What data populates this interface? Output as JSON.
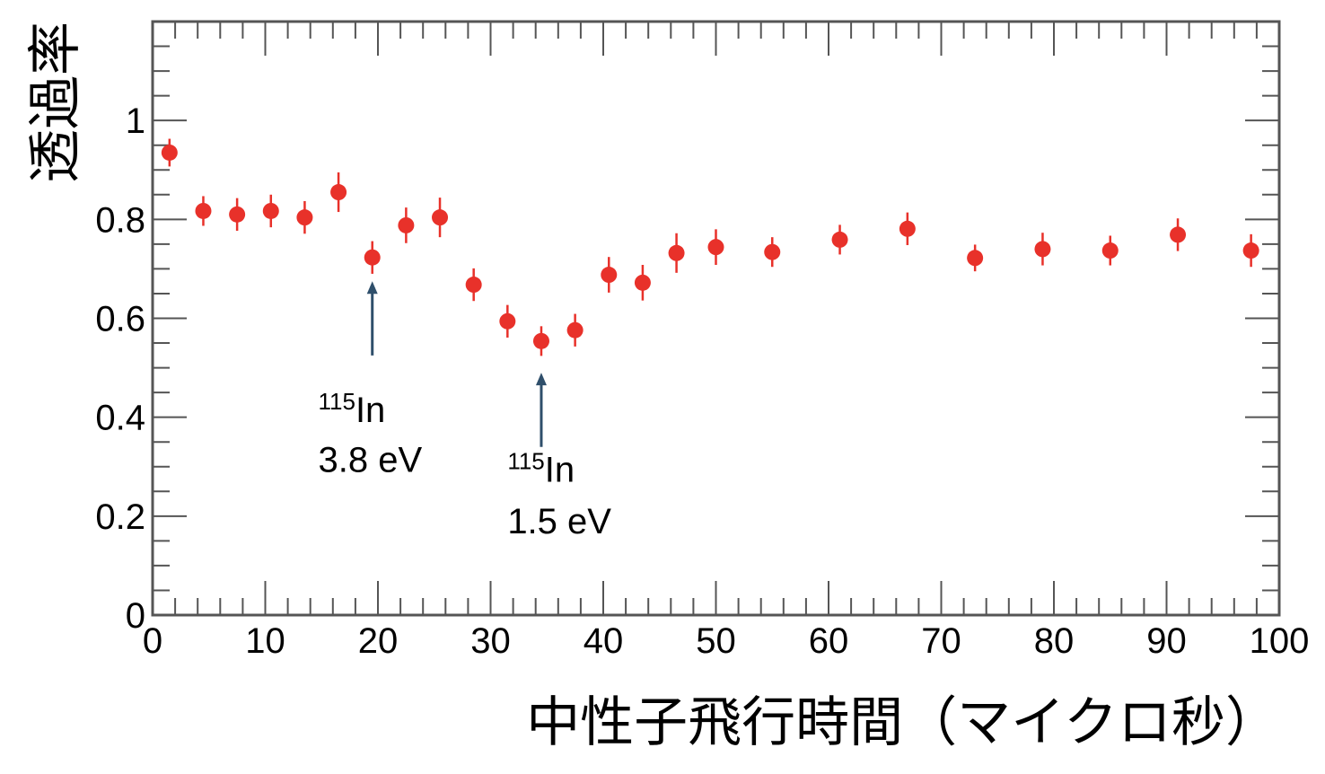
{
  "chart_data": {
    "type": "scatter",
    "title": "",
    "xlabel": "中性子飛行時間（マイクロ秒）",
    "ylabel": "透過率",
    "xlim": [
      0,
      100
    ],
    "ylim": [
      0,
      1.2
    ],
    "x_ticks": [
      "0",
      "10",
      "20",
      "30",
      "40",
      "50",
      "60",
      "70",
      "80",
      "90",
      "100"
    ],
    "y_ticks": [
      "0",
      "0.2",
      "0.4",
      "0.6",
      "0.8",
      "1"
    ],
    "grid": false,
    "colors": {
      "marker": "#e8312a",
      "errorbar": "#e8312a",
      "arrow": "#2f4f6b",
      "axis": "#555555"
    },
    "series": [
      {
        "points": [
          {
            "x": 1.5,
            "y": 0.935,
            "err": 0.028
          },
          {
            "x": 4.5,
            "y": 0.817,
            "err": 0.03
          },
          {
            "x": 7.5,
            "y": 0.81,
            "err": 0.033
          },
          {
            "x": 10.5,
            "y": 0.817,
            "err": 0.033
          },
          {
            "x": 13.5,
            "y": 0.804,
            "err": 0.033
          },
          {
            "x": 16.5,
            "y": 0.855,
            "err": 0.04
          },
          {
            "x": 19.5,
            "y": 0.723,
            "err": 0.033
          },
          {
            "x": 22.5,
            "y": 0.788,
            "err": 0.036
          },
          {
            "x": 25.5,
            "y": 0.804,
            "err": 0.04
          },
          {
            "x": 28.5,
            "y": 0.668,
            "err": 0.033
          },
          {
            "x": 31.5,
            "y": 0.594,
            "err": 0.033
          },
          {
            "x": 34.5,
            "y": 0.554,
            "err": 0.03
          },
          {
            "x": 37.5,
            "y": 0.576,
            "err": 0.033
          },
          {
            "x": 40.5,
            "y": 0.688,
            "err": 0.036
          },
          {
            "x": 43.5,
            "y": 0.672,
            "err": 0.036
          },
          {
            "x": 46.5,
            "y": 0.732,
            "err": 0.04
          },
          {
            "x": 50.0,
            "y": 0.744,
            "err": 0.036
          },
          {
            "x": 55.0,
            "y": 0.734,
            "err": 0.03
          },
          {
            "x": 61.0,
            "y": 0.759,
            "err": 0.03
          },
          {
            "x": 67.0,
            "y": 0.781,
            "err": 0.033
          },
          {
            "x": 73.0,
            "y": 0.722,
            "err": 0.027
          },
          {
            "x": 79.0,
            "y": 0.74,
            "err": 0.033
          },
          {
            "x": 85.0,
            "y": 0.737,
            "err": 0.03
          },
          {
            "x": 91.0,
            "y": 0.769,
            "err": 0.033
          },
          {
            "x": 97.5,
            "y": 0.737,
            "err": 0.033
          }
        ]
      }
    ],
    "annotations": [
      {
        "arrow_x": 19.5,
        "arrow_tip_y": 0.675,
        "arrow_tail_y": 0.525,
        "text_x": 14.7,
        "superscript": "115",
        "element": "In",
        "line1_y": 0.39,
        "energy": "3.8 eV",
        "line2_y": 0.29
      },
      {
        "arrow_x": 34.5,
        "arrow_tip_y": 0.49,
        "arrow_tail_y": 0.34,
        "text_x": 31.5,
        "superscript": "115",
        "element": "In",
        "line1_y": 0.27,
        "energy": "1.5 eV",
        "line2_y": 0.165
      }
    ]
  }
}
